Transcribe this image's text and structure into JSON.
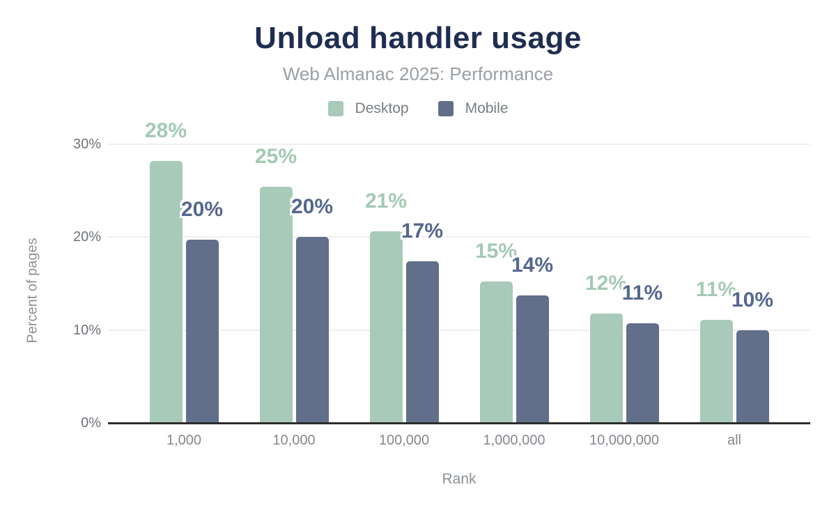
{
  "chart_data": {
    "type": "bar",
    "title": "Unload handler usage",
    "subtitle": "Web Almanac 2025: Performance",
    "categories": [
      "1,000",
      "10,000",
      "100,000",
      "1,000,000",
      "10,000,000",
      "all"
    ],
    "series": [
      {
        "name": "Desktop",
        "values": [
          28.2,
          25.4,
          20.6,
          15.2,
          11.8,
          11.1
        ],
        "point_labels": [
          "28%",
          "25%",
          "21%",
          "15%",
          "12%",
          "11%"
        ],
        "color": "#a8cab8",
        "label_color": "#a3c9b4"
      },
      {
        "name": "Mobile",
        "values": [
          19.7,
          20.0,
          17.4,
          13.7,
          10.7,
          10.0
        ],
        "point_labels": [
          "20%",
          "20%",
          "17%",
          "14%",
          "11%",
          "10%"
        ],
        "color": "#616f8b",
        "label_color": "#55678e"
      }
    ],
    "xlabel": "Rank",
    "ylabel": "Percent of pages",
    "ylim": [
      0,
      30
    ],
    "yticks": [
      "0%",
      "10%",
      "20%",
      "30%"
    ],
    "grid": true,
    "legend_position": "top-center"
  },
  "styles": {
    "title_color": "#1e2d51",
    "subtitle_color": "#9aa0a5",
    "legend_text_color": "#787d82",
    "ytick_color": "#6e7378",
    "xtick_color": "#83888e",
    "axis_title_color": "#8a9096",
    "gridline_color": "#efefef",
    "baseline_color": "#2d2d2d",
    "background_color": "#ffffff"
  }
}
